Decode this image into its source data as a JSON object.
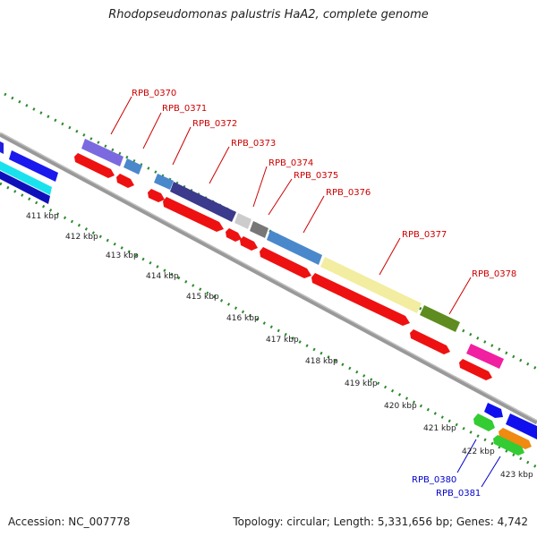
{
  "title": "Rhodopseudomonas palustris HaA2, complete genome",
  "footer": {
    "accession": "Accession: NC_007778",
    "stats": "Topology: circular; Length: 5,331,656 bp; Genes: 4,742"
  },
  "scale_labels": [
    "411 kbp",
    "412 kbp",
    "413 kbp",
    "414 kbp",
    "415 kbp",
    "416 kbp",
    "417 kbp",
    "418 kbp",
    "419 kbp",
    "420 kbp",
    "421 kbp",
    "422 kbp",
    "423 kbp"
  ],
  "gene_labels": {
    "top": [
      "RPB_0370",
      "RPB_0371",
      "RPB_0372",
      "RPB_0373",
      "RPB_0374",
      "RPB_0375",
      "RPB_0376",
      "RPB_0377",
      "RPB_0378"
    ],
    "bottom": [
      "RPB_0380",
      "RPB_0381"
    ]
  },
  "colors": {
    "label_top": "#cc0000",
    "label_bottom": "#0000cc",
    "backbone": "#888888",
    "tick": "#2a8a2a"
  }
}
